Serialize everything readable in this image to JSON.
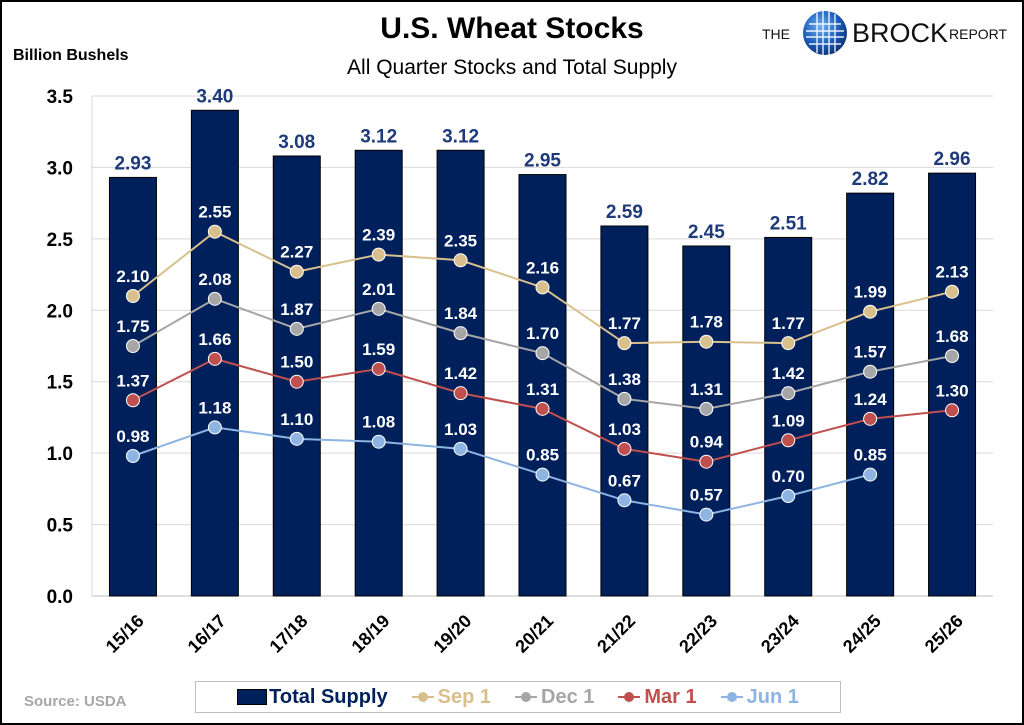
{
  "header": {
    "title": "U.S. Wheat Stocks",
    "subtitle": "All Quarter Stocks and Total Supply",
    "y_unit_label": "Billion Bushels",
    "logo_text": {
      "the": "THE",
      "brock": "BROCK",
      "report": "REPORT"
    }
  },
  "footer": {
    "source": "Source: USDA"
  },
  "legend": {
    "items": [
      {
        "label": "Total Supply",
        "color": "#00205b",
        "kind": "bar"
      },
      {
        "label": "Sep 1",
        "color": "#d9bf8c",
        "kind": "line"
      },
      {
        "label": "Dec 1",
        "color": "#a6a6a6",
        "kind": "line"
      },
      {
        "label": "Mar 1",
        "color": "#c0504d",
        "kind": "line"
      },
      {
        "label": "Jun 1",
        "color": "#8db4e2",
        "kind": "line"
      }
    ]
  },
  "chart_data": {
    "type": "bar",
    "title": "U.S. Wheat Stocks",
    "subtitle": "All Quarter Stocks and Total Supply",
    "xlabel": "",
    "ylabel": "Billion Bushels",
    "ylim": [
      0,
      3.5
    ],
    "yticks": [
      "0.0",
      "0.5",
      "1.0",
      "1.5",
      "2.0",
      "2.5",
      "3.0",
      "3.5"
    ],
    "grid": true,
    "legend_position": "bottom",
    "categories": [
      "15/16",
      "16/17",
      "17/18",
      "18/19",
      "19/20",
      "20/21",
      "21/22",
      "22/23",
      "23/24",
      "24/25",
      "25/26"
    ],
    "series": [
      {
        "name": "Total Supply",
        "type": "bar",
        "color": "#00205b",
        "label_color": "#1f3a7a",
        "values": [
          2.93,
          3.4,
          3.08,
          3.12,
          3.12,
          2.95,
          2.59,
          2.45,
          2.51,
          2.82,
          2.96
        ],
        "labels": [
          "2.93",
          "3.40",
          "3.08",
          "3.12",
          "3.12",
          "2.95",
          "2.59",
          "2.45",
          "2.51",
          "2.82",
          "2.96"
        ]
      },
      {
        "name": "Sep 1",
        "type": "line",
        "color": "#d9bf8c",
        "values": [
          2.1,
          2.55,
          2.27,
          2.39,
          2.35,
          2.16,
          1.77,
          1.78,
          1.77,
          1.99,
          2.13
        ],
        "labels": [
          "2.10",
          "2.55",
          "2.27",
          "2.39",
          "2.35",
          "2.16",
          "1.77",
          "1.78",
          "1.77",
          "1.99",
          "2.13"
        ]
      },
      {
        "name": "Dec 1",
        "type": "line",
        "color": "#a6a6a6",
        "values": [
          1.75,
          2.08,
          1.87,
          2.01,
          1.84,
          1.7,
          1.38,
          1.31,
          1.42,
          1.57,
          1.68
        ],
        "labels": [
          "1.75",
          "2.08",
          "1.87",
          "2.01",
          "1.84",
          "1.70",
          "1.38",
          "1.31",
          "1.42",
          "1.57",
          "1.68"
        ]
      },
      {
        "name": "Mar 1",
        "type": "line",
        "color": "#c0504d",
        "values": [
          1.37,
          1.66,
          1.5,
          1.59,
          1.42,
          1.31,
          1.03,
          0.94,
          1.09,
          1.24,
          1.3
        ],
        "labels": [
          "1.37",
          "1.66",
          "1.50",
          "1.59",
          "1.42",
          "1.31",
          "1.03",
          "0.94",
          "1.09",
          "1.24",
          "1.30"
        ]
      },
      {
        "name": "Jun 1",
        "type": "line",
        "color": "#8db4e2",
        "values": [
          0.98,
          1.18,
          1.1,
          1.08,
          1.03,
          0.85,
          0.67,
          0.57,
          0.7,
          0.85,
          null
        ],
        "labels": [
          "0.98",
          "1.18",
          "1.10",
          "1.08",
          "1.03",
          "0.85",
          "0.67",
          "0.57",
          "0.70",
          "0.85",
          null
        ]
      }
    ]
  }
}
